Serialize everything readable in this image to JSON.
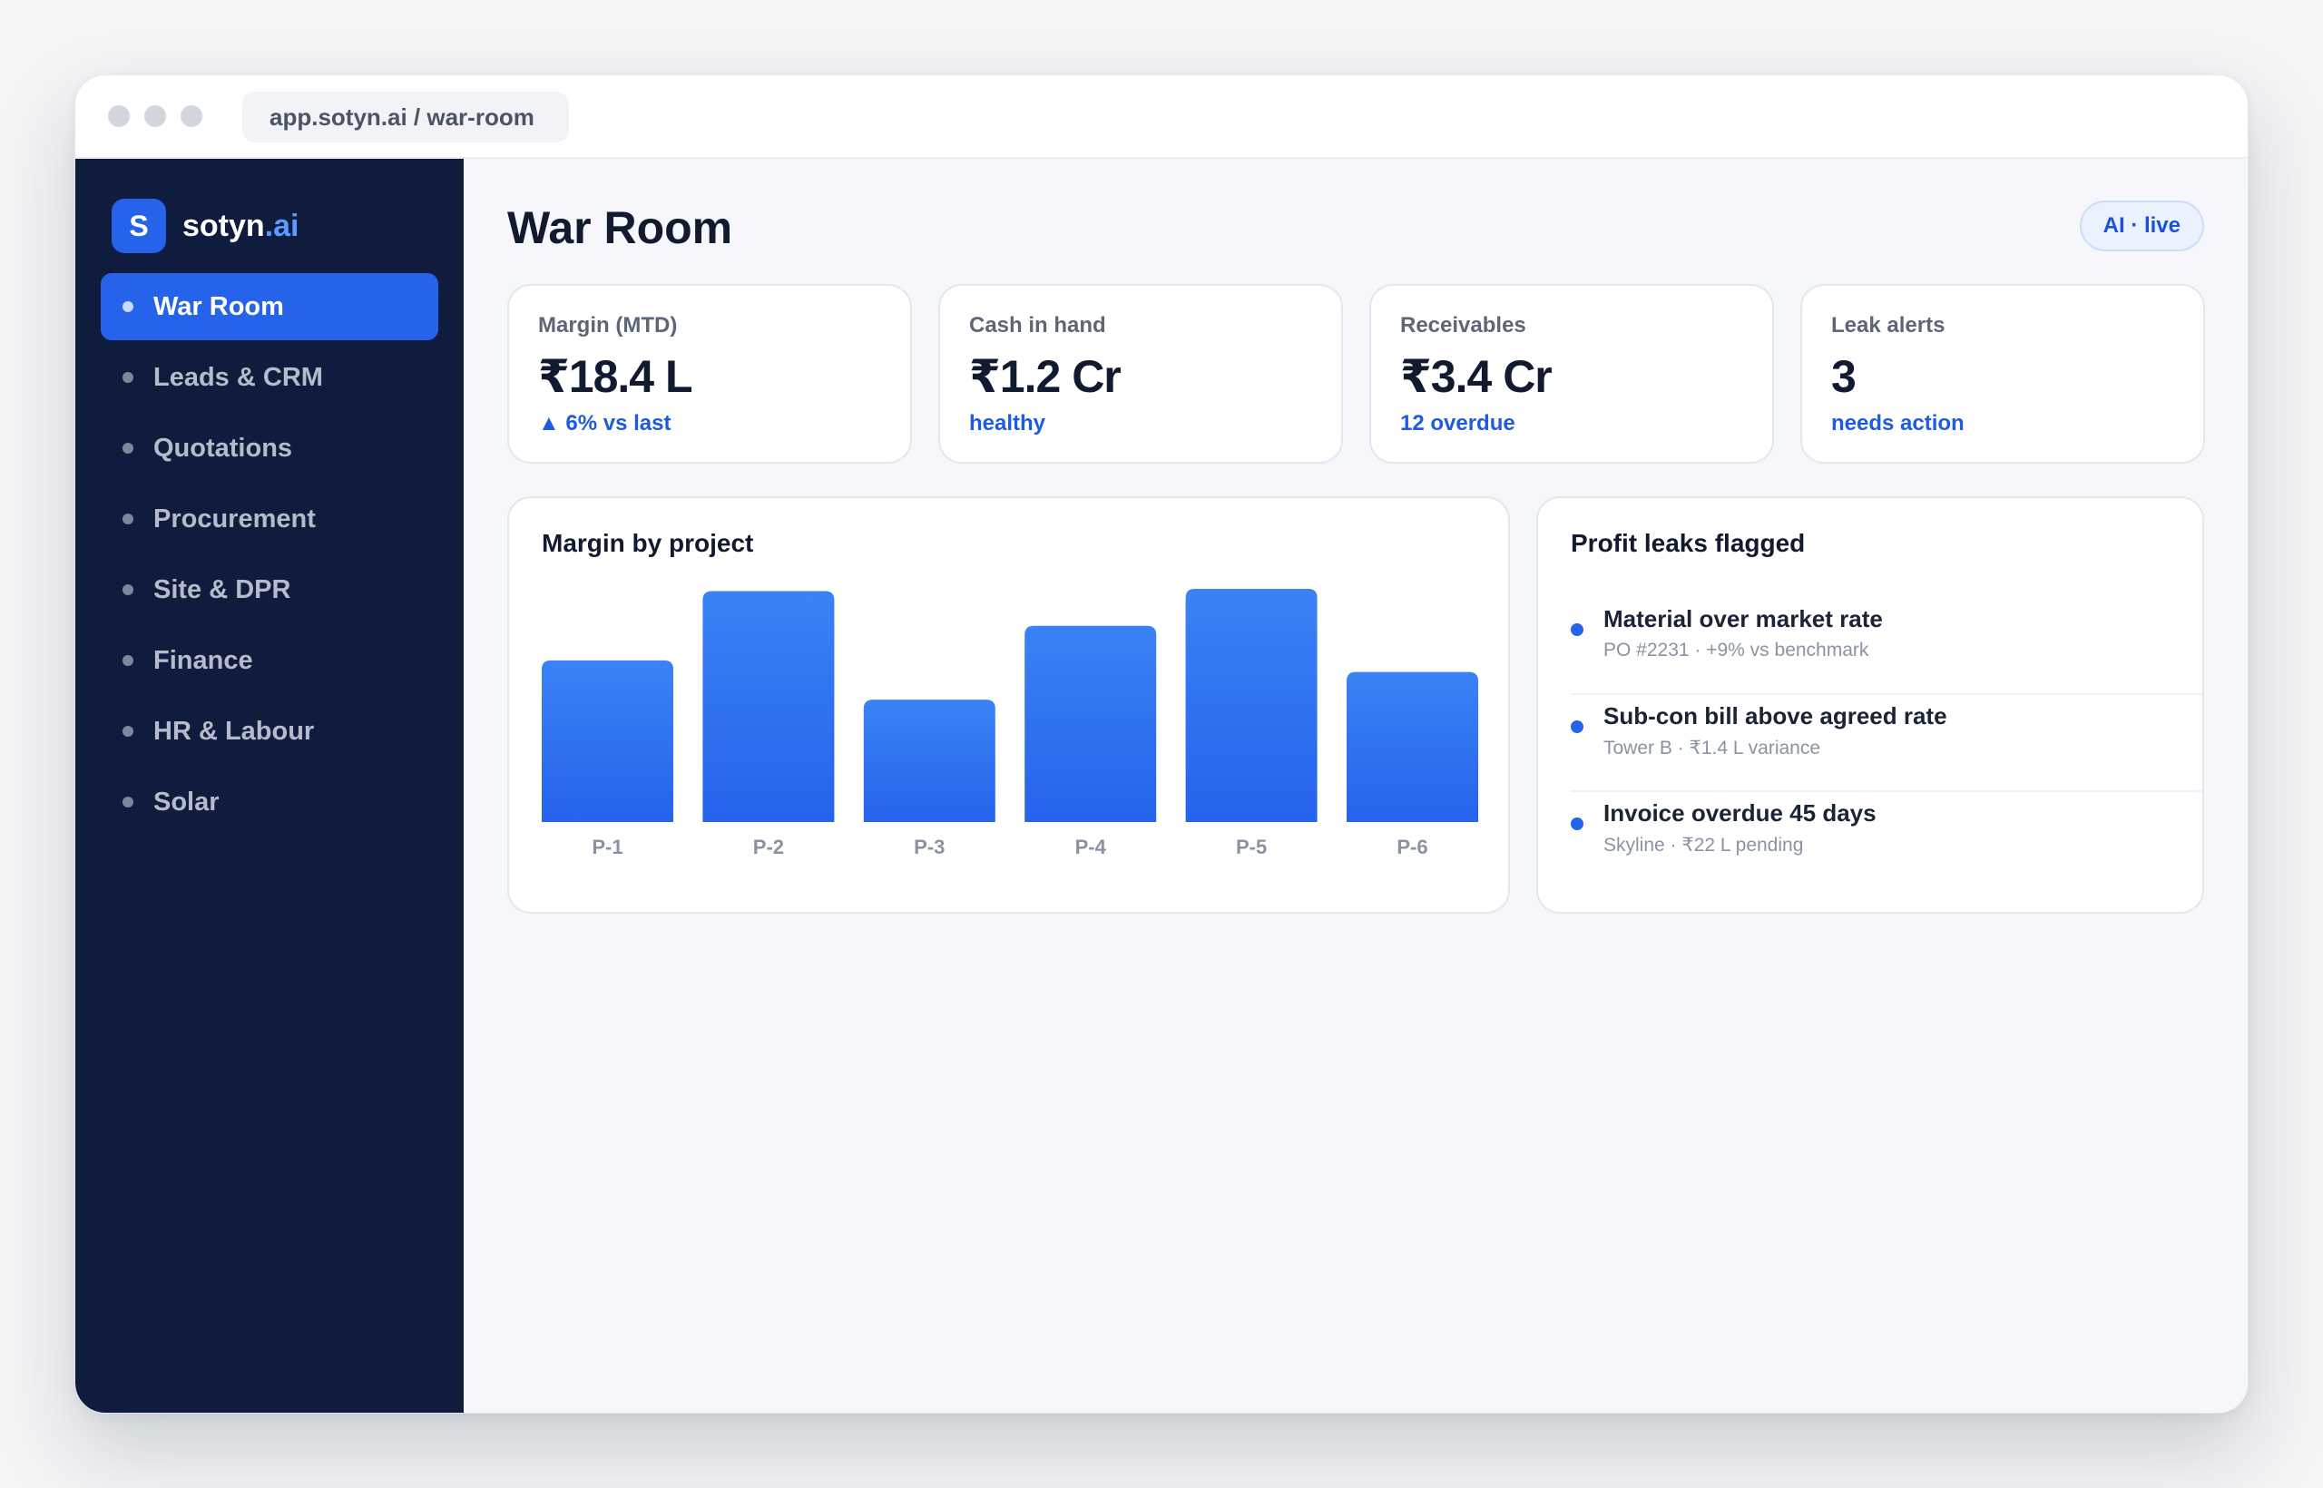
{
  "browser": {
    "url": "app.sotyn.ai / war-room"
  },
  "sidebar": {
    "logo_letter": "S",
    "brand_name": "sotyn",
    "brand_suffix": ".ai",
    "items": [
      {
        "label": "War Room",
        "active": true
      },
      {
        "label": "Leads & CRM",
        "active": false
      },
      {
        "label": "Quotations",
        "active": false
      },
      {
        "label": "Procurement",
        "active": false
      },
      {
        "label": "Site & DPR",
        "active": false
      },
      {
        "label": "Finance",
        "active": false
      },
      {
        "label": "HR & Labour",
        "active": false
      },
      {
        "label": "Solar",
        "active": false
      }
    ]
  },
  "header": {
    "title": "War Room",
    "status_pill": "AI · live"
  },
  "kpis": [
    {
      "label": "Margin (MTD)",
      "value": "₹18.4 L",
      "sub": "▲ 6% vs last"
    },
    {
      "label": "Cash in hand",
      "value": "₹1.2 Cr",
      "sub": "healthy"
    },
    {
      "label": "Receivables",
      "value": "₹3.4 Cr",
      "sub": "12 overdue"
    },
    {
      "label": "Leak alerts",
      "value": "3",
      "sub": "needs action"
    }
  ],
  "margin_card": {
    "title": "Margin by project"
  },
  "chart_data": {
    "type": "bar",
    "categories": [
      "P-1",
      "P-2",
      "P-3",
      "P-4",
      "P-5",
      "P-6"
    ],
    "values": [
      70,
      100,
      53,
      85,
      101,
      65
    ],
    "title": "Margin by project",
    "xlabel": "",
    "ylabel": "",
    "ylim": [
      0,
      101
    ],
    "grid": false,
    "colors": {
      "bar_top": "#3b82f6",
      "bar_bottom": "#2563eb",
      "tick": "#8a92a2"
    }
  },
  "leaks": {
    "title": "Profit leaks flagged",
    "items": [
      {
        "title": "Material over market rate",
        "detail": "PO #2231 · +9% vs benchmark"
      },
      {
        "title": "Sub-con bill above agreed rate",
        "detail": "Tower B · ₹1.4 L variance"
      },
      {
        "title": "Invoice overdue 45 days",
        "detail": "Skyline · ₹22 L pending"
      }
    ]
  },
  "colors": {
    "sidebar_bg": "#101c3d",
    "accent": "#2563eb",
    "main_bg": "#f5f7fa"
  }
}
